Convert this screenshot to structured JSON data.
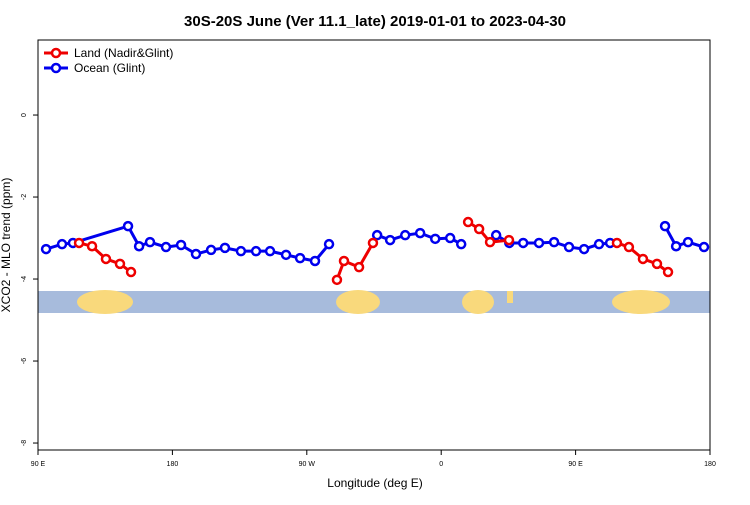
{
  "chart_data": {
    "type": "line",
    "title": "30S-20S June (Ver 11.1_late)   2019-01-01 to 2023-04-30",
    "x_label": "Longitude (deg E)",
    "y_label": "XCO2 - MLO trend (ppm)",
    "xlim": [
      90,
      540
    ],
    "xticks": [
      {
        "value": 90,
        "label": "90 E"
      },
      {
        "value": 180,
        "label": "180"
      },
      {
        "value": 270,
        "label": "90 W"
      },
      {
        "value": 360,
        "label": "0"
      },
      {
        "value": 450,
        "label": "90 E"
      },
      {
        "value": 540,
        "label": "180"
      }
    ],
    "ylim": [
      -8.17,
      1.83
    ],
    "yticks": [
      0,
      -2,
      -4,
      -6,
      -8
    ],
    "legend": "top-left",
    "series": [
      {
        "name": "Land (Nadir&Glint)",
        "color": "#ee0000",
        "x": [
          117.5,
          126.2,
          135.5,
          144.9,
          152.3,
          null,
          290.2,
          294.9,
          305.0,
          314.3,
          null,
          378.0,
          385.4,
          392.7,
          405.4,
          null,
          477.7,
          485.7,
          495.1,
          504.5,
          511.9
        ],
        "values": [
          -3.12,
          -3.2,
          -3.51,
          -3.63,
          -3.83,
          null,
          -4.02,
          -3.56,
          -3.71,
          -3.12,
          null,
          -2.61,
          -2.78,
          -3.1,
          -3.05,
          null,
          -3.12,
          -3.22,
          -3.51,
          -3.63,
          -3.83
        ]
      },
      {
        "name": "Ocean (Glint)",
        "color": "#0000ee",
        "x": [
          95.4,
          106.1,
          113.4,
          150.3,
          157.7,
          165.0,
          175.7,
          185.8,
          195.8,
          205.9,
          215.2,
          225.9,
          236.0,
          245.4,
          256.1,
          265.5,
          275.5,
          284.9,
          null,
          317.1,
          325.8,
          335.9,
          345.9,
          356.0,
          366.0,
          373.4,
          null,
          396.8,
          405.6,
          414.9,
          425.5,
          435.6,
          445.6,
          455.7,
          465.7,
          473.1,
          null,
          509.9,
          517.3,
          525.3,
          536.0
        ],
        "values": [
          -3.27,
          -3.15,
          -3.12,
          -2.71,
          -3.2,
          -3.1,
          -3.22,
          -3.17,
          -3.39,
          -3.29,
          -3.24,
          -3.32,
          -3.32,
          -3.32,
          -3.41,
          -3.49,
          -3.56,
          -3.15,
          null,
          -2.93,
          -3.05,
          -2.93,
          -2.88,
          -3.02,
          -3.0,
          -3.15,
          null,
          -2.93,
          -3.12,
          -3.12,
          -3.12,
          -3.1,
          -3.22,
          -3.27,
          -3.15,
          -3.12,
          null,
          -2.71,
          -3.2,
          -3.1,
          -3.22
        ]
      }
    ]
  }
}
